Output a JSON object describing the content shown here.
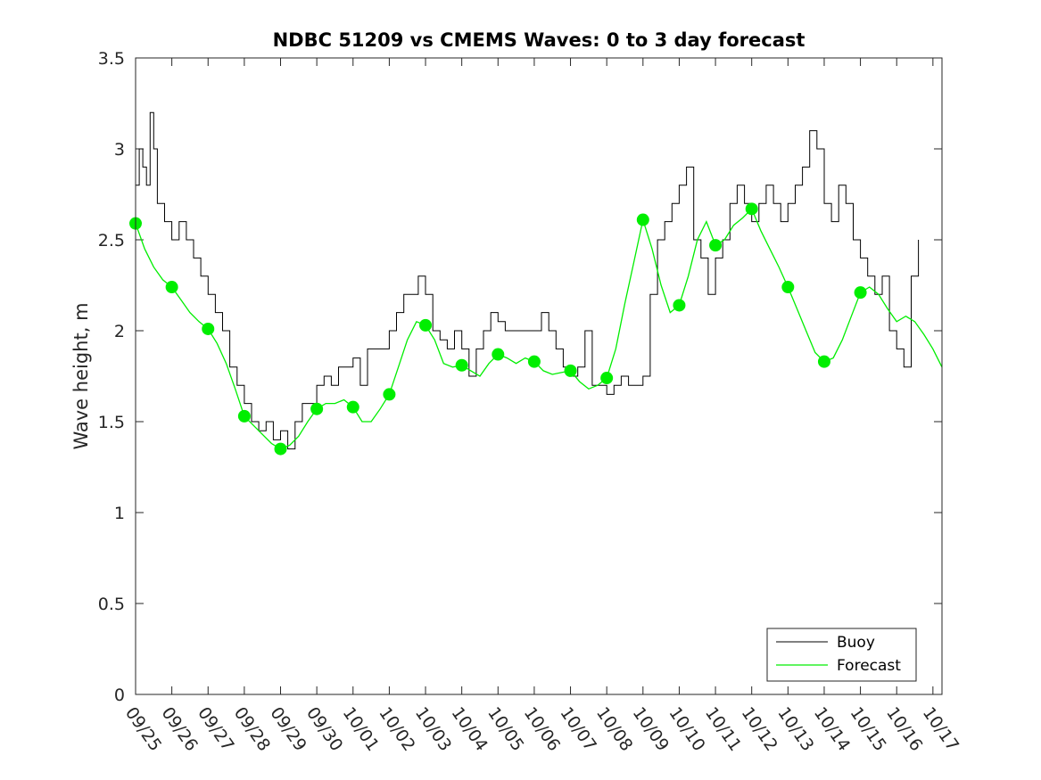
{
  "chart_data": {
    "type": "line",
    "title": "NDBC 51209 vs CMEMS Waves: 0 to 3 day forecast",
    "xlabel": "",
    "ylabel": "Wave height, m",
    "ylim": [
      0,
      3.5
    ],
    "yticks": [
      0,
      0.5,
      1,
      1.5,
      2,
      2.5,
      3,
      3.5
    ],
    "ytick_labels": [
      "0",
      "0.5",
      "1",
      "1.5",
      "2",
      "2.5",
      "3",
      "3.5"
    ],
    "xlim": [
      0,
      22.25
    ],
    "xtick_labels": [
      "09/25",
      "09/26",
      "09/27",
      "09/28",
      "09/29",
      "09/30",
      "10/01",
      "10/02",
      "10/03",
      "10/04",
      "10/05",
      "10/06",
      "10/07",
      "10/08",
      "10/09",
      "10/10",
      "10/11",
      "10/12",
      "10/13",
      "10/14",
      "10/15",
      "10/16",
      "10/17"
    ],
    "legend": {
      "position": "bottom-right",
      "entries": [
        "Buoy",
        "Forecast"
      ]
    },
    "colors": {
      "buoy": "#000000",
      "forecast": "#00ee00"
    },
    "series": [
      {
        "name": "Buoy",
        "x": [
          0,
          0.1,
          0.2,
          0.3,
          0.4,
          0.5,
          0.6,
          0.8,
          1.0,
          1.2,
          1.4,
          1.6,
          1.8,
          2.0,
          2.2,
          2.4,
          2.6,
          2.8,
          3.0,
          3.2,
          3.4,
          3.6,
          3.8,
          4.0,
          4.2,
          4.4,
          4.6,
          4.8,
          5.0,
          5.2,
          5.4,
          5.6,
          5.8,
          6.0,
          6.2,
          6.4,
          6.6,
          6.8,
          7.0,
          7.2,
          7.4,
          7.6,
          7.8,
          8.0,
          8.2,
          8.4,
          8.6,
          8.8,
          9.0,
          9.2,
          9.4,
          9.6,
          9.8,
          10.0,
          10.2,
          10.4,
          10.6,
          10.8,
          11.0,
          11.2,
          11.4,
          11.6,
          11.8,
          12.0,
          12.2,
          12.4,
          12.6,
          12.8,
          13.0,
          13.2,
          13.4,
          13.6,
          13.8,
          14.0,
          14.2,
          14.4,
          14.6,
          14.8,
          15.0,
          15.2,
          15.4,
          15.6,
          15.8,
          16.0,
          16.2,
          16.4,
          16.6,
          16.8,
          17.0,
          17.2,
          17.4,
          17.6,
          17.8,
          18.0,
          18.2,
          18.4,
          18.6,
          18.8,
          19.0,
          19.2,
          19.4,
          19.6,
          19.8,
          20.0,
          20.2,
          20.4,
          20.6,
          20.8,
          21.0,
          21.2,
          21.4,
          21.6
        ],
        "values": [
          2.8,
          3.0,
          2.9,
          2.8,
          3.2,
          3.0,
          2.7,
          2.6,
          2.5,
          2.6,
          2.5,
          2.4,
          2.3,
          2.2,
          2.1,
          2.0,
          1.8,
          1.7,
          1.6,
          1.5,
          1.45,
          1.5,
          1.4,
          1.45,
          1.35,
          1.5,
          1.6,
          1.6,
          1.7,
          1.75,
          1.7,
          1.8,
          1.8,
          1.85,
          1.7,
          1.9,
          1.9,
          1.9,
          2.0,
          2.1,
          2.2,
          2.2,
          2.3,
          2.2,
          2.0,
          1.95,
          1.9,
          2.0,
          1.9,
          1.75,
          1.9,
          2.0,
          2.1,
          2.05,
          2.0,
          2.0,
          2.0,
          2.0,
          2.0,
          2.1,
          2.0,
          1.9,
          1.8,
          1.75,
          1.8,
          2.0,
          1.7,
          1.7,
          1.65,
          1.7,
          1.75,
          1.7,
          1.7,
          1.75,
          2.2,
          2.5,
          2.6,
          2.7,
          2.8,
          2.9,
          2.5,
          2.4,
          2.2,
          2.4,
          2.5,
          2.7,
          2.8,
          2.7,
          2.6,
          2.7,
          2.8,
          2.7,
          2.6,
          2.7,
          2.8,
          2.9,
          3.1,
          3.0,
          2.7,
          2.6,
          2.8,
          2.7,
          2.5,
          2.4,
          2.3,
          2.2,
          2.3,
          2.0,
          1.9,
          1.8,
          2.3,
          2.5
        ]
      },
      {
        "name": "Forecast",
        "x": [
          0,
          0.25,
          0.5,
          0.75,
          1.0,
          1.25,
          1.5,
          1.75,
          2.0,
          2.25,
          2.5,
          2.75,
          3.0,
          3.25,
          3.5,
          3.75,
          4.0,
          4.25,
          4.5,
          4.75,
          5.0,
          5.25,
          5.5,
          5.75,
          6.0,
          6.25,
          6.5,
          6.75,
          7.0,
          7.25,
          7.5,
          7.75,
          8.0,
          8.25,
          8.5,
          8.75,
          9.0,
          9.25,
          9.5,
          9.75,
          10.0,
          10.25,
          10.5,
          10.75,
          11.0,
          11.25,
          11.5,
          11.75,
          12.0,
          12.25,
          12.5,
          12.75,
          13.0,
          13.25,
          13.5,
          13.75,
          14.0,
          14.25,
          14.5,
          14.75,
          15.0,
          15.25,
          15.5,
          15.75,
          16.0,
          16.25,
          16.5,
          16.75,
          17.0,
          17.25,
          17.5,
          17.75,
          18.0,
          18.25,
          18.5,
          18.75,
          19.0,
          19.25,
          19.5,
          19.75,
          20.0,
          20.25,
          20.5,
          20.75,
          21.0,
          21.25,
          21.5,
          21.75,
          22.0,
          22.25
        ],
        "values": [
          2.59,
          2.45,
          2.35,
          2.28,
          2.24,
          2.17,
          2.1,
          2.05,
          2.01,
          1.93,
          1.82,
          1.68,
          1.53,
          1.48,
          1.43,
          1.38,
          1.35,
          1.37,
          1.42,
          1.5,
          1.57,
          1.6,
          1.6,
          1.62,
          1.58,
          1.5,
          1.5,
          1.57,
          1.65,
          1.8,
          1.95,
          2.05,
          2.03,
          1.95,
          1.82,
          1.8,
          1.81,
          1.78,
          1.75,
          1.82,
          1.87,
          1.85,
          1.82,
          1.85,
          1.83,
          1.78,
          1.76,
          1.77,
          1.78,
          1.72,
          1.68,
          1.7,
          1.74,
          1.9,
          2.15,
          2.38,
          2.61,
          2.45,
          2.25,
          2.1,
          2.14,
          2.3,
          2.5,
          2.6,
          2.47,
          2.5,
          2.58,
          2.62,
          2.67,
          2.55,
          2.45,
          2.35,
          2.24,
          2.12,
          2.0,
          1.88,
          1.83,
          1.85,
          1.95,
          2.08,
          2.21,
          2.24,
          2.2,
          2.12,
          2.05,
          2.08,
          2.05,
          1.98,
          1.9,
          1.8
        ]
      }
    ],
    "forecast_markers": {
      "x": [
        0,
        1,
        2,
        3,
        4,
        5,
        6,
        7,
        8,
        9,
        10,
        11,
        12,
        13,
        14,
        15,
        16,
        17,
        18,
        19,
        20
      ],
      "values": [
        2.59,
        2.24,
        2.01,
        1.53,
        1.35,
        1.57,
        1.58,
        1.65,
        2.03,
        1.81,
        1.87,
        1.83,
        1.78,
        1.74,
        2.61,
        2.14,
        2.47,
        2.67,
        2.24,
        1.83,
        2.21
      ]
    }
  }
}
